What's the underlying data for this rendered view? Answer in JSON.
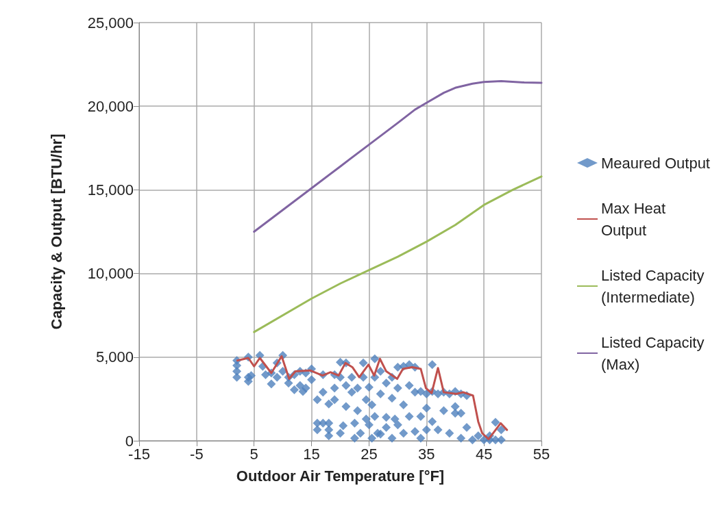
{
  "chart_data": {
    "type": "line",
    "xlabel": "Outdoor Air Temperature [°F]",
    "ylabel": "Capacity & Output [BTU/hr]",
    "xlim": [
      -15,
      55
    ],
    "xticks": [
      -15,
      -5,
      5,
      15,
      25,
      35,
      45,
      55
    ],
    "ylim": [
      0,
      25000
    ],
    "yticks": [
      {
        "value": 0,
        "label": "0"
      },
      {
        "value": 5000,
        "label": "5,000"
      },
      {
        "value": 10000,
        "label": "10,000"
      },
      {
        "value": 15000,
        "label": "15,000"
      },
      {
        "value": 20000,
        "label": "20,000"
      },
      {
        "value": 25000,
        "label": "25,000"
      }
    ],
    "grid": true,
    "legend": "right",
    "line_style": "solid",
    "series": [
      {
        "name": "Meaured Output",
        "type": "scatter",
        "marker": "diamond",
        "color": "#4f81bd",
        "x": [
          2,
          2,
          2,
          2,
          4,
          4,
          4,
          4.5,
          6,
          6.5,
          7,
          8,
          8,
          9,
          9,
          10,
          10,
          11,
          11,
          12,
          12,
          13,
          13,
          13.5,
          14,
          14,
          15,
          15,
          16,
          16,
          16,
          17,
          17,
          17,
          18,
          18,
          18,
          18,
          19,
          19,
          19,
          20,
          20,
          20,
          20.5,
          21,
          21,
          21,
          22,
          22,
          22.5,
          22.5,
          23,
          23,
          23.5,
          24,
          24,
          24.5,
          24.5,
          25,
          25,
          25.5,
          25.5,
          26,
          26,
          26,
          26.5,
          27,
          27,
          27,
          28,
          28,
          28,
          29,
          29,
          29,
          29.5,
          30,
          30,
          30,
          31,
          31,
          31,
          32,
          32,
          32,
          33,
          33,
          33,
          34,
          34,
          34,
          35,
          35,
          35,
          36,
          36,
          36,
          37,
          37,
          38,
          38,
          39,
          39,
          40,
          40,
          40,
          41,
          41,
          41,
          42,
          42,
          43,
          44,
          45,
          46,
          46,
          47,
          47,
          48,
          48
        ],
        "values": [
          4800,
          4500,
          4150,
          3800,
          5000,
          3800,
          3550,
          3900,
          5100,
          4450,
          3950,
          4050,
          3400,
          4650,
          3800,
          5100,
          4150,
          3450,
          3800,
          3950,
          3050,
          4150,
          3300,
          2950,
          4050,
          3150,
          4300,
          3650,
          2450,
          1050,
          650,
          3950,
          2900,
          1050,
          650,
          300,
          2200,
          1050,
          3950,
          3150,
          2450,
          4700,
          3800,
          450,
          900,
          4650,
          3300,
          2050,
          3800,
          2900,
          150,
          1050,
          3150,
          1800,
          450,
          4650,
          3800,
          2450,
          1300,
          3200,
          950,
          150,
          2150,
          4900,
          3800,
          1450,
          450,
          4150,
          2800,
          400,
          3450,
          1400,
          800,
          3800,
          2550,
          150,
          1300,
          4400,
          3150,
          950,
          4450,
          2150,
          450,
          4550,
          3300,
          1450,
          4400,
          2900,
          550,
          2950,
          1450,
          150,
          2800,
          1950,
          650,
          4550,
          2950,
          1150,
          2800,
          650,
          2900,
          1800,
          2800,
          450,
          2950,
          2050,
          1650,
          2800,
          150,
          1650,
          2700,
          800,
          50,
          300,
          50,
          50,
          300,
          1100,
          50,
          650,
          50
        ]
      },
      {
        "name": "Max Heat Output",
        "type": "line",
        "marker": "none",
        "color": "#c0504d",
        "x": [
          2.1,
          4,
          5,
          6,
          8,
          9.8,
          11.1,
          12.2,
          14.8,
          16.9,
          18.3,
          19.7,
          20.9,
          22.1,
          23.3,
          24.9,
          25.9,
          26.9,
          28,
          29.9,
          30.9,
          32.5,
          34,
          34.9,
          35.9,
          37,
          38,
          40.2,
          41.4,
          43.1,
          44,
          44.7,
          45.8,
          46.8,
          47.9,
          49
        ],
        "values": [
          4800,
          4950,
          4450,
          4950,
          4050,
          5050,
          3700,
          4150,
          4200,
          3900,
          4100,
          3900,
          4650,
          4400,
          3800,
          4550,
          3900,
          4900,
          4150,
          3700,
          4300,
          4400,
          4300,
          3150,
          2850,
          4350,
          2900,
          2800,
          2900,
          2700,
          1150,
          450,
          100,
          550,
          1050,
          650
        ]
      },
      {
        "name": "Listed Capacity (Intermediate)",
        "type": "line",
        "marker": "none",
        "color": "#9bbb59",
        "x": [
          5,
          15,
          20,
          25,
          30,
          35,
          40,
          45,
          50,
          55
        ],
        "values": [
          6500,
          8500,
          9400,
          10200,
          11000,
          11900,
          12900,
          14100,
          15000,
          15800
        ]
      },
      {
        "name": "Listed Capacity (Max)",
        "type": "line",
        "marker": "none",
        "color": "#8064a2",
        "x": [
          5,
          10,
          15,
          20,
          25,
          30,
          33,
          35,
          38,
          40,
          43,
          45,
          48,
          52,
          55
        ],
        "values": [
          12500,
          13800,
          15100,
          16400,
          17700,
          19000,
          19800,
          20200,
          20800,
          21100,
          21350,
          21450,
          21500,
          21420,
          21400
        ]
      }
    ]
  }
}
